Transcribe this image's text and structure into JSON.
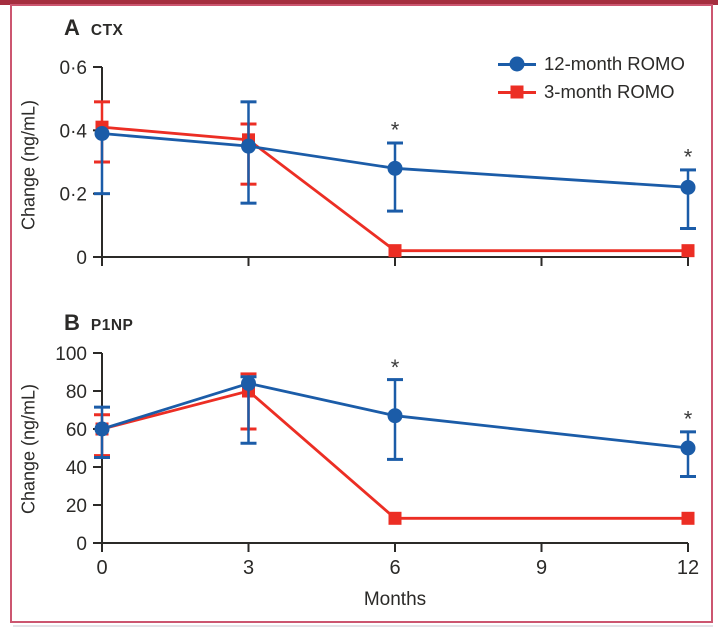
{
  "figure": {
    "top_bar_color": "#a52e3f",
    "border_color": "#cc5670",
    "background": "#ffffff",
    "text_color": "#2b2a28",
    "axis_color": "#2b2a28",
    "annotation_color": "#3a3a3a"
  },
  "legend": {
    "items": [
      {
        "label": "12-month ROMO",
        "color": "#1b5ca8",
        "marker": "circle"
      },
      {
        "label": "3-month ROMO",
        "color": "#ec2e24",
        "marker": "square"
      }
    ]
  },
  "chart_data": [
    {
      "type": "line",
      "panel": "A",
      "title": "CTX",
      "ylabel": "Change (ng/mL)",
      "xlabel": "",
      "x": [
        0,
        3,
        6,
        12
      ],
      "xlim": [
        0,
        12
      ],
      "xticks": [
        0,
        3,
        6,
        9,
        12
      ],
      "xtick_labels": [],
      "ylim": [
        0,
        0.6
      ],
      "yticks": [
        0,
        0.2,
        0.4,
        0.6
      ],
      "ytick_labels": [
        "0",
        "0·2",
        "0·4",
        "0·6"
      ],
      "series": [
        {
          "name": "3-month ROMO",
          "color": "#ec2e24",
          "marker": "square",
          "values": [
            0.41,
            0.37,
            0.02,
            0.02
          ],
          "err_lo": [
            0.3,
            0.23,
            null,
            null
          ],
          "err_hi": [
            0.49,
            0.42,
            null,
            null
          ]
        },
        {
          "name": "12-month ROMO",
          "color": "#1b5ca8",
          "marker": "circle",
          "values": [
            0.39,
            0.35,
            0.28,
            0.22
          ],
          "err_lo": [
            0.2,
            0.17,
            0.145,
            0.09
          ],
          "err_hi": [
            null,
            0.49,
            0.36,
            0.275
          ]
        }
      ],
      "annotations": [
        {
          "x": 6,
          "y": 0.4,
          "text": "*"
        },
        {
          "x": 12,
          "y": 0.315,
          "text": "*"
        }
      ]
    },
    {
      "type": "line",
      "panel": "B",
      "title": "P1NP",
      "ylabel": "Change (ng/mL)",
      "xlabel": "Months",
      "x": [
        0,
        3,
        6,
        12
      ],
      "xlim": [
        0,
        12
      ],
      "xticks": [
        0,
        3,
        6,
        9,
        12
      ],
      "xtick_labels": [
        "0",
        "3",
        "6",
        "9",
        "12"
      ],
      "ylim": [
        0,
        100
      ],
      "yticks": [
        0,
        20,
        40,
        60,
        80,
        100
      ],
      "ytick_labels": [
        "0",
        "20",
        "40",
        "60",
        "80",
        "100"
      ],
      "series": [
        {
          "name": "3-month ROMO",
          "color": "#ec2e24",
          "marker": "square",
          "values": [
            60,
            80,
            13,
            13
          ],
          "err_lo": [
            46,
            60,
            null,
            null
          ],
          "err_hi": [
            67.5,
            89,
            null,
            null
          ]
        },
        {
          "name": "12-month ROMO",
          "color": "#1b5ca8",
          "marker": "circle",
          "values": [
            60,
            84,
            67,
            50
          ],
          "err_lo": [
            45,
            52.5,
            44,
            35
          ],
          "err_hi": [
            71.5,
            87.5,
            86,
            58.5
          ]
        }
      ],
      "annotations": [
        {
          "x": 6,
          "y": 92,
          "text": "*"
        },
        {
          "x": 12,
          "y": 65,
          "text": "*"
        }
      ]
    }
  ]
}
